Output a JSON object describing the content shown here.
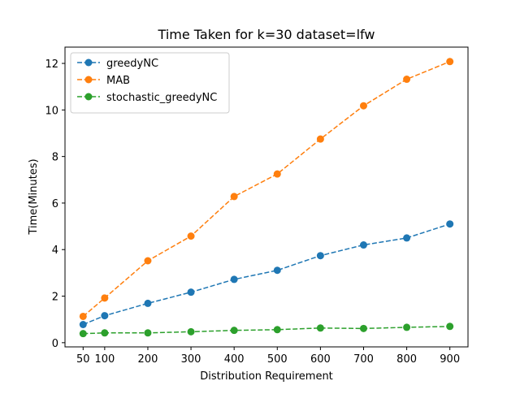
{
  "chart_data": {
    "type": "line",
    "title": "Time Taken for k=30 dataset=lfw",
    "xlabel": "Distribution Requirement",
    "ylabel": "Time(Minutes)",
    "x": [
      50,
      100,
      200,
      300,
      400,
      500,
      600,
      700,
      800,
      900
    ],
    "xticks": [
      50,
      100,
      200,
      300,
      400,
      500,
      600,
      700,
      800,
      900
    ],
    "yticks": [
      0,
      2,
      4,
      6,
      8,
      10,
      12
    ],
    "xlim": [
      8,
      942
    ],
    "ylim": [
      -0.18,
      12.7
    ],
    "grid": false,
    "legend_position": "upper-left",
    "line_style": "dashed",
    "marker": "circle",
    "series": [
      {
        "name": "greedyNC",
        "color": "#1f77b4",
        "values": [
          0.78,
          1.16,
          1.69,
          2.17,
          2.72,
          3.11,
          3.74,
          4.2,
          4.5,
          5.1
        ]
      },
      {
        "name": "MAB",
        "color": "#ff7f0e",
        "values": [
          1.13,
          1.92,
          3.52,
          4.58,
          6.28,
          7.25,
          8.75,
          10.18,
          11.32,
          12.08
        ]
      },
      {
        "name": "stochastic_greedyNC",
        "color": "#2ca02c",
        "values": [
          0.39,
          0.42,
          0.42,
          0.47,
          0.53,
          0.56,
          0.63,
          0.61,
          0.66,
          0.7
        ]
      }
    ]
  }
}
